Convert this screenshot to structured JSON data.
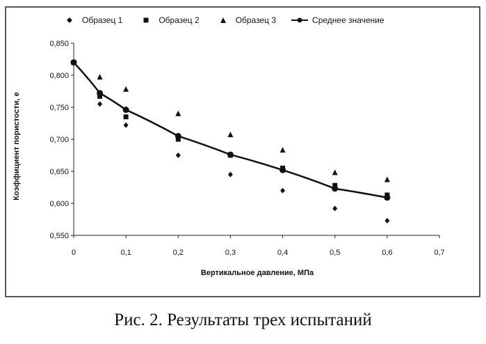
{
  "chart_data": {
    "type": "scatter",
    "title": "",
    "xlabel": "Вертикальное давление, МПа",
    "ylabel": "Коэффициент пористости, е",
    "xlim": [
      0,
      0.7
    ],
    "ylim": [
      0.55,
      0.85
    ],
    "xticks": [
      "0",
      "0,1",
      "0,2",
      "0,3",
      "0,4",
      "0,5",
      "0,6",
      "0,7"
    ],
    "xtick_values": [
      0,
      0.1,
      0.2,
      0.3,
      0.4,
      0.5,
      0.6,
      0.7
    ],
    "yticks": [
      "0,550",
      "0,600",
      "0,650",
      "0,700",
      "0,750",
      "0,800",
      "0,850"
    ],
    "ytick_values": [
      0.55,
      0.6,
      0.65,
      0.7,
      0.75,
      0.8,
      0.85
    ],
    "grid": false,
    "legend_position": "top",
    "series": [
      {
        "name": "Образец 1",
        "marker": "diamond",
        "color": "#111111",
        "x": [
          0,
          0.05,
          0.1,
          0.2,
          0.3,
          0.4,
          0.5,
          0.6
        ],
        "y": [
          0.82,
          0.755,
          0.722,
          0.675,
          0.645,
          0.62,
          0.592,
          0.573
        ]
      },
      {
        "name": "Образец 2",
        "marker": "square",
        "color": "#111111",
        "x": [
          0,
          0.05,
          0.1,
          0.2,
          0.3,
          0.4,
          0.5,
          0.6
        ],
        "y": [
          0.82,
          0.767,
          0.735,
          0.7,
          0.675,
          0.655,
          0.628,
          0.613
        ]
      },
      {
        "name": "Образец 3",
        "marker": "triangle",
        "color": "#111111",
        "x": [
          0,
          0.05,
          0.1,
          0.2,
          0.3,
          0.4,
          0.5,
          0.6
        ],
        "y": [
          0.82,
          0.797,
          0.778,
          0.74,
          0.707,
          0.683,
          0.648,
          0.637
        ]
      },
      {
        "name": "Среднее значение",
        "marker": "circle-line",
        "color": "#111111",
        "x": [
          0,
          0.05,
          0.1,
          0.2,
          0.3,
          0.4,
          0.5,
          0.6
        ],
        "y": [
          0.82,
          0.772,
          0.746,
          0.705,
          0.676,
          0.652,
          0.623,
          0.609
        ]
      }
    ]
  },
  "caption": "Рис. 2. Результаты трех испытаний"
}
